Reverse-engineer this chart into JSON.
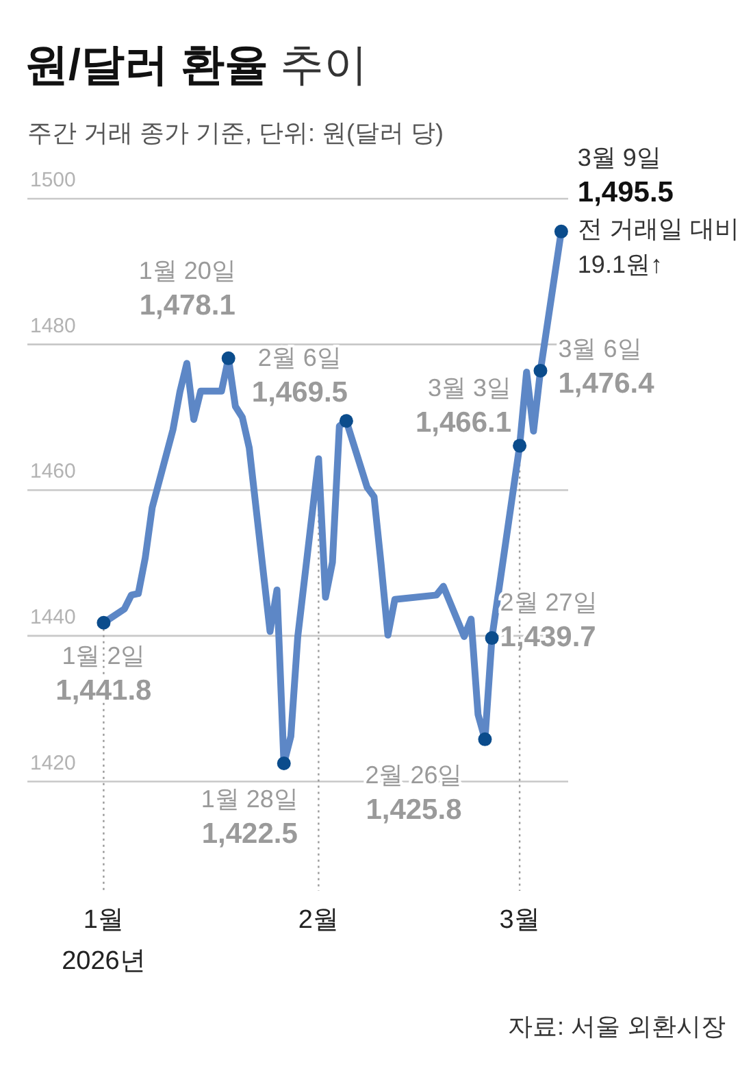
{
  "chart_data": {
    "type": "line",
    "title": "원/달러 환율 추이",
    "subtitle": "주간 거래 종가 기준, 단위: 원(달러 당)",
    "x": [
      "2026-01-02",
      "2026-01-05",
      "2026-01-06",
      "2026-01-07",
      "2026-01-08",
      "2026-01-09",
      "2026-01-12",
      "2026-01-13",
      "2026-01-14",
      "2026-01-15",
      "2026-01-16",
      "2026-01-19",
      "2026-01-20",
      "2026-01-21",
      "2026-01-22",
      "2026-01-23",
      "2026-01-26",
      "2026-01-27",
      "2026-01-28",
      "2026-01-29",
      "2026-01-30",
      "2026-02-02",
      "2026-02-03",
      "2026-02-04",
      "2026-02-05",
      "2026-02-06",
      "2026-02-09",
      "2026-02-10",
      "2026-02-11",
      "2026-02-12",
      "2026-02-13",
      "2026-02-19",
      "2026-02-20",
      "2026-02-23",
      "2026-02-24",
      "2026-02-25",
      "2026-02-26",
      "2026-02-27",
      "2026-03-03",
      "2026-03-04",
      "2026-03-05",
      "2026-03-06",
      "2026-03-09"
    ],
    "series": [
      {
        "color": "#5d87c6",
        "values": [
          1441.8,
          1443.7,
          1445.6,
          1445.8,
          1450.7,
          1457.6,
          1468.3,
          1473.5,
          1477.4,
          1469.7,
          1473.6,
          1473.6,
          1478.1,
          1471.5,
          1470.0,
          1465.8,
          1440.6,
          1446.3,
          1422.5,
          1426.2,
          1439.9,
          1464.3,
          1445.3,
          1450.1,
          1468.8,
          1469.5,
          1460.4,
          1459.1,
          1450.0,
          1440.1,
          1445.0,
          1445.6,
          1446.8,
          1439.9,
          1442.3,
          1429.2,
          1425.8,
          1439.7,
          1466.1,
          1476.2,
          1468.1,
          1476.4,
          1495.5
        ]
      }
    ],
    "ref_lines": [
      {
        "axis": "x",
        "value": "2026-01-02",
        "color": "#999999",
        "line_style": "dotted"
      },
      {
        "axis": "x",
        "value": "2026-02-02",
        "color": "#999999",
        "line_style": "dotted"
      },
      {
        "axis": "x",
        "value": "2026-03-03",
        "color": "#999999",
        "line_style": "dotted"
      }
    ],
    "xlim": [
      "2025-12-22",
      "2026-03-10"
    ],
    "ylim": [
      1405,
      1500
    ],
    "yticks": [
      1420,
      1440,
      1460,
      1480,
      1500
    ],
    "grid": "y",
    "xticks": [
      {
        "value": "2026-01-02",
        "label": "1월\n2026년"
      },
      {
        "value": "2026-02-02",
        "label": "2월"
      },
      {
        "value": "2026-03-03",
        "label": "3월"
      }
    ],
    "annotations": [
      {
        "text": "1월 2일\n1,441.8",
        "x": "2026-01-02",
        "y": 1441.8
      },
      {
        "text": "1월 20일\n1,478.1",
        "x": "2026-01-20",
        "y": 1478.1
      },
      {
        "text": "1월 28일\n1,422.5",
        "x": "2026-01-28",
        "y": 1422.5
      },
      {
        "text": "2월 6일\n1,469.5",
        "x": "2026-02-06",
        "y": 1469.5
      },
      {
        "text": "2월 26일\n1,425.8",
        "x": "2026-02-26",
        "y": 1425.8
      },
      {
        "text": "2월 27일\n1,439.7",
        "x": "2026-02-27",
        "y": 1439.7
      },
      {
        "text": "3월 3일\n1,466.1",
        "x": "2026-03-03",
        "y": 1466.1
      },
      {
        "text": "3월 6일\n1,476.4",
        "x": "2026-03-06",
        "y": 1476.4
      },
      {
        "text": "3월 9일\n1,495.5\n전 거래일 대비\n19.1원↑",
        "x": "2026-03-09",
        "y": 1495.5
      },
      "자료: 서울 외환시장"
    ]
  }
}
